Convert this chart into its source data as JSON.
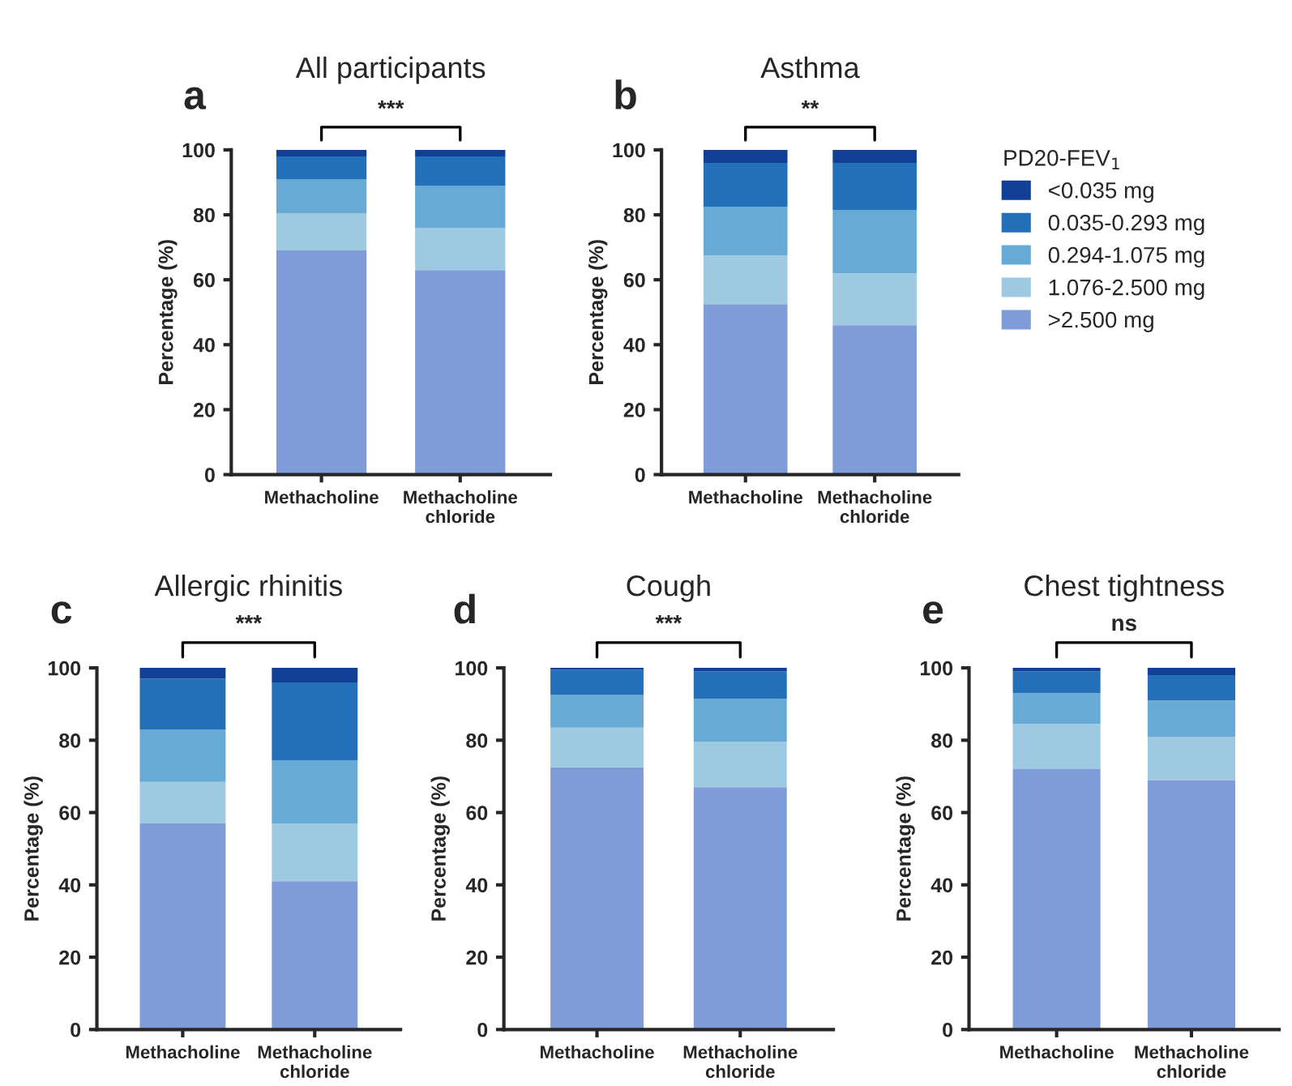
{
  "chart_data": [
    {
      "type": "bar",
      "title": "All participants",
      "ylabel": "Percentage (%)",
      "categories": [
        "Methacholine",
        "Methacholine\nchloride"
      ],
      "stacked": true,
      "ylim": [
        0,
        100
      ],
      "yticks": [
        0,
        20,
        40,
        60,
        80,
        100
      ],
      "grid": false,
      "annotations": [
        "a",
        "***"
      ],
      "series": [
        {
          "color": "#7f9cd8",
          "values": [
            69,
            63
          ]
        },
        {
          "color": "#9ecae1",
          "values": [
            11.5,
            13
          ]
        },
        {
          "color": "#68aad6",
          "values": [
            10.5,
            13
          ]
        },
        {
          "color": "#2470b8",
          "values": [
            7,
            9
          ]
        },
        {
          "color": "#123f96",
          "values": [
            2,
            2
          ]
        }
      ]
    },
    {
      "type": "bar",
      "title": "Asthma",
      "ylabel": "Percentage (%)",
      "categories": [
        "Methacholine",
        "Methacholine\nchloride"
      ],
      "stacked": true,
      "ylim": [
        0,
        100
      ],
      "yticks": [
        0,
        20,
        40,
        60,
        80,
        100
      ],
      "grid": false,
      "annotations": [
        "b",
        "**"
      ],
      "legend": "right",
      "legend_title": "PD20-FEV$_{1}$",
      "series": [
        {
          "name": ">2.500 mg",
          "color": "#7f9cd8",
          "values": [
            52.5,
            46
          ]
        },
        {
          "name": "1.076-2.500 mg",
          "color": "#9ecae1",
          "values": [
            15,
            16
          ]
        },
        {
          "name": "0.294-1.075 mg",
          "color": "#68aad6",
          "values": [
            15,
            19.5
          ]
        },
        {
          "name": "0.035-0.293 mg",
          "color": "#2470b8",
          "values": [
            13.5,
            14.5
          ]
        },
        {
          "name": "<0.035 mg",
          "color": "#123f96",
          "values": [
            4,
            4
          ]
        }
      ]
    },
    {
      "type": "bar",
      "title": "Allergic rhinitis",
      "ylabel": "Percentage (%)",
      "categories": [
        "Methacholine",
        "Methacholine\nchloride"
      ],
      "stacked": true,
      "ylim": [
        0,
        100
      ],
      "yticks": [
        0,
        20,
        40,
        60,
        80,
        100
      ],
      "grid": false,
      "annotations": [
        "c",
        "***"
      ],
      "series": [
        {
          "color": "#7f9cd8",
          "values": [
            57,
            41
          ]
        },
        {
          "color": "#9ecae1",
          "values": [
            11.5,
            16
          ]
        },
        {
          "color": "#68aad6",
          "values": [
            14.5,
            17.5
          ]
        },
        {
          "color": "#2470b8",
          "values": [
            14,
            21.5
          ]
        },
        {
          "color": "#123f96",
          "values": [
            3,
            4
          ]
        }
      ]
    },
    {
      "type": "bar",
      "title": "Cough",
      "ylabel": "Percentage (%)",
      "categories": [
        "Methacholine",
        "Methacholine\nchloride"
      ],
      "stacked": true,
      "ylim": [
        0,
        100
      ],
      "yticks": [
        0,
        20,
        40,
        60,
        80,
        100
      ],
      "grid": false,
      "annotations": [
        "d",
        "***"
      ],
      "series": [
        {
          "color": "#7f9cd8",
          "values": [
            72.5,
            67
          ]
        },
        {
          "color": "#9ecae1",
          "values": [
            11,
            12.5
          ]
        },
        {
          "color": "#68aad6",
          "values": [
            9,
            12
          ]
        },
        {
          "color": "#2470b8",
          "values": [
            7,
            7.5
          ]
        },
        {
          "color": "#123f96",
          "values": [
            0.5,
            1
          ]
        }
      ]
    },
    {
      "type": "bar",
      "title": "Chest tightness",
      "ylabel": "Percentage (%)",
      "categories": [
        "Methacholine",
        "Methacholine\nchloride"
      ],
      "stacked": true,
      "ylim": [
        0,
        100
      ],
      "yticks": [
        0,
        20,
        40,
        60,
        80,
        100
      ],
      "grid": false,
      "annotations": [
        "e",
        "ns"
      ],
      "series": [
        {
          "color": "#7f9cd8",
          "values": [
            72,
            69
          ]
        },
        {
          "color": "#9ecae1",
          "values": [
            12.5,
            12
          ]
        },
        {
          "color": "#68aad6",
          "values": [
            8.5,
            10
          ]
        },
        {
          "color": "#2470b8",
          "values": [
            6,
            7
          ]
        },
        {
          "color": "#123f96",
          "values": [
            1,
            2
          ]
        }
      ]
    }
  ]
}
